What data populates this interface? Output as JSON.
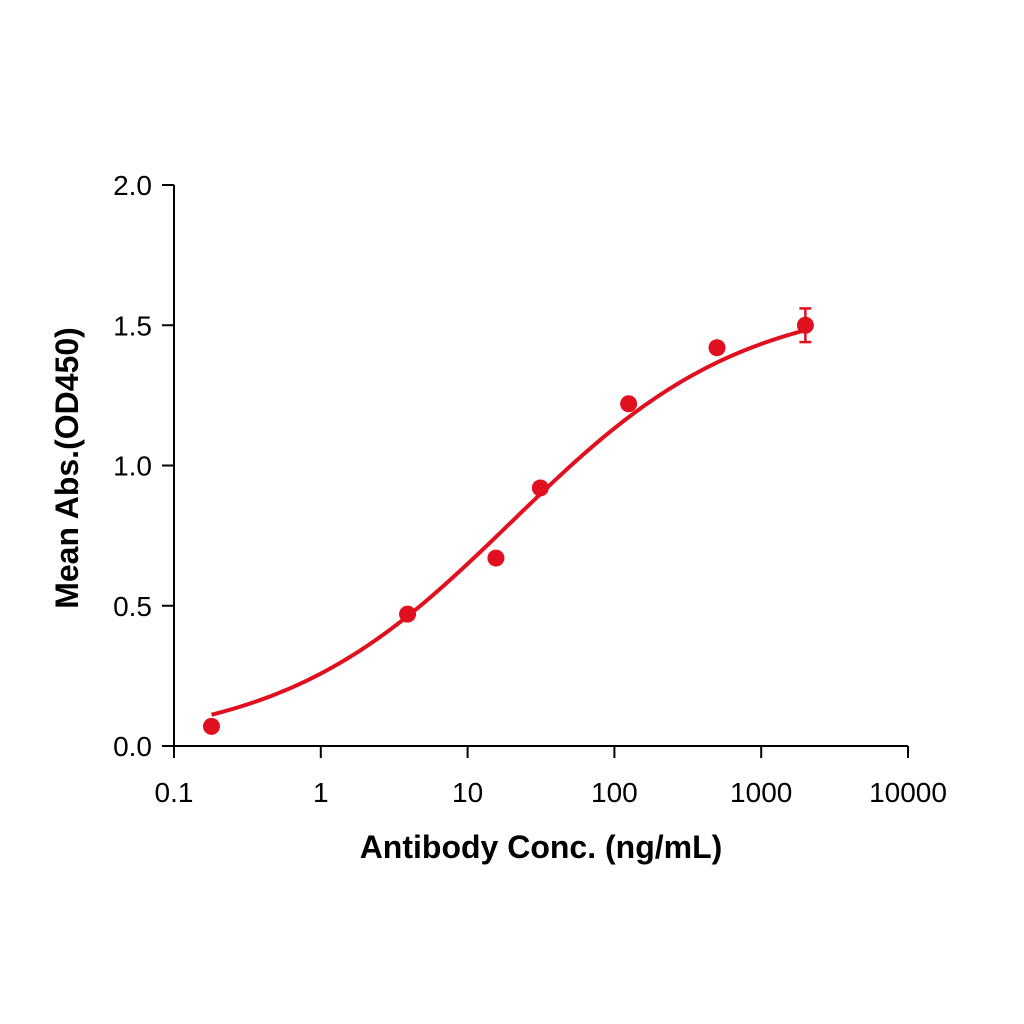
{
  "chart_data": {
    "type": "scatter",
    "title": "",
    "xlabel": "Antibody Conc. (ng/mL)",
    "ylabel": "Mean Abs.(OD450)",
    "xscale": "log",
    "xlim": [
      0.1,
      10000
    ],
    "ylim": [
      0.0,
      2.0
    ],
    "x_ticks": [
      0.1,
      1,
      10,
      100,
      1000,
      10000
    ],
    "x_tick_labels": [
      "0.1",
      "1",
      "10",
      "100",
      "1000",
      "10000"
    ],
    "y_ticks": [
      0.0,
      0.5,
      1.0,
      1.5,
      2.0
    ],
    "y_tick_labels": [
      "0.0",
      "0.5",
      "1.0",
      "1.5",
      "2.0"
    ],
    "grid": false,
    "color": "#e0101e",
    "series": [
      {
        "points": [
          {
            "x": 0.18,
            "y": 0.07
          },
          {
            "x": 3.9,
            "y": 0.47
          },
          {
            "x": 15.6,
            "y": 0.67
          },
          {
            "x": 31.3,
            "y": 0.92
          },
          {
            "x": 125,
            "y": 1.22
          },
          {
            "x": 500,
            "y": 1.42
          },
          {
            "x": 2000,
            "y": 1.5,
            "err": 0.06
          }
        ],
        "fit": {
          "model": "4PL",
          "bottom": 0.0,
          "top": 1.6,
          "ec50": 20,
          "hill": 0.55,
          "x_range": [
            0.18,
            2000
          ]
        }
      }
    ]
  }
}
